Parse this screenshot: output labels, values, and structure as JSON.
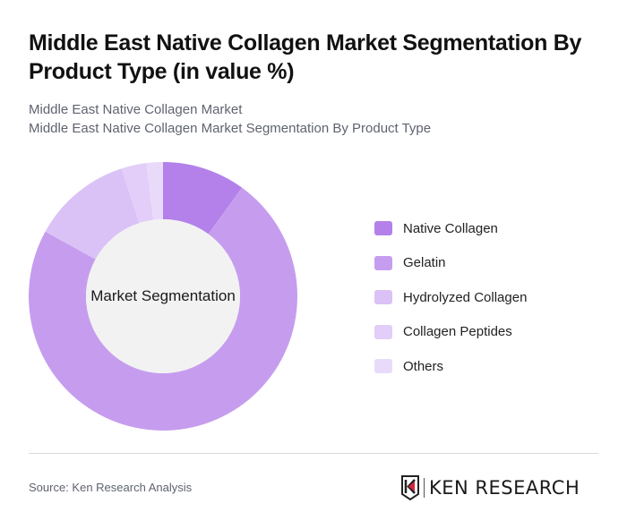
{
  "header": {
    "title": "Middle East Native Collagen Market Segmentation By Product Type (in value %)",
    "subtitle_1": "Middle East Native Collagen Market",
    "subtitle_2": "Middle East Native Collagen Market Segmentation By Product Type"
  },
  "chart": {
    "center_label": "Market Segmentation"
  },
  "legend": {
    "items": [
      {
        "label": "Native Collagen",
        "color": "#b381e9"
      },
      {
        "label": "Gelatin",
        "color": "#c69dee"
      },
      {
        "label": "Hydrolyzed Collagen",
        "color": "#dbc2f6"
      },
      {
        "label": "Collagen Peptides",
        "color": "#e2cef8"
      },
      {
        "label": "Others",
        "color": "#e9dafa"
      }
    ]
  },
  "footer": {
    "source": "Source: Ken Research Analysis",
    "logo_text": "KEN RESEARCH"
  },
  "chart_data": {
    "type": "pie",
    "title": "Middle East Native Collagen Market Segmentation By Product Type (in value %)",
    "subtitle": "Middle East Native Collagen Market Segmentation By Product Type",
    "center_label": "Market Segmentation",
    "donut": true,
    "categories": [
      "Native Collagen",
      "Gelatin",
      "Hydrolyzed Collagen",
      "Collagen Peptides",
      "Others"
    ],
    "values": [
      10,
      73,
      12,
      3,
      2
    ],
    "colors": [
      "#b381e9",
      "#c69dee",
      "#dbc2f6",
      "#e2cef8",
      "#e9dafa"
    ],
    "legend_position": "right",
    "unit": "%"
  }
}
